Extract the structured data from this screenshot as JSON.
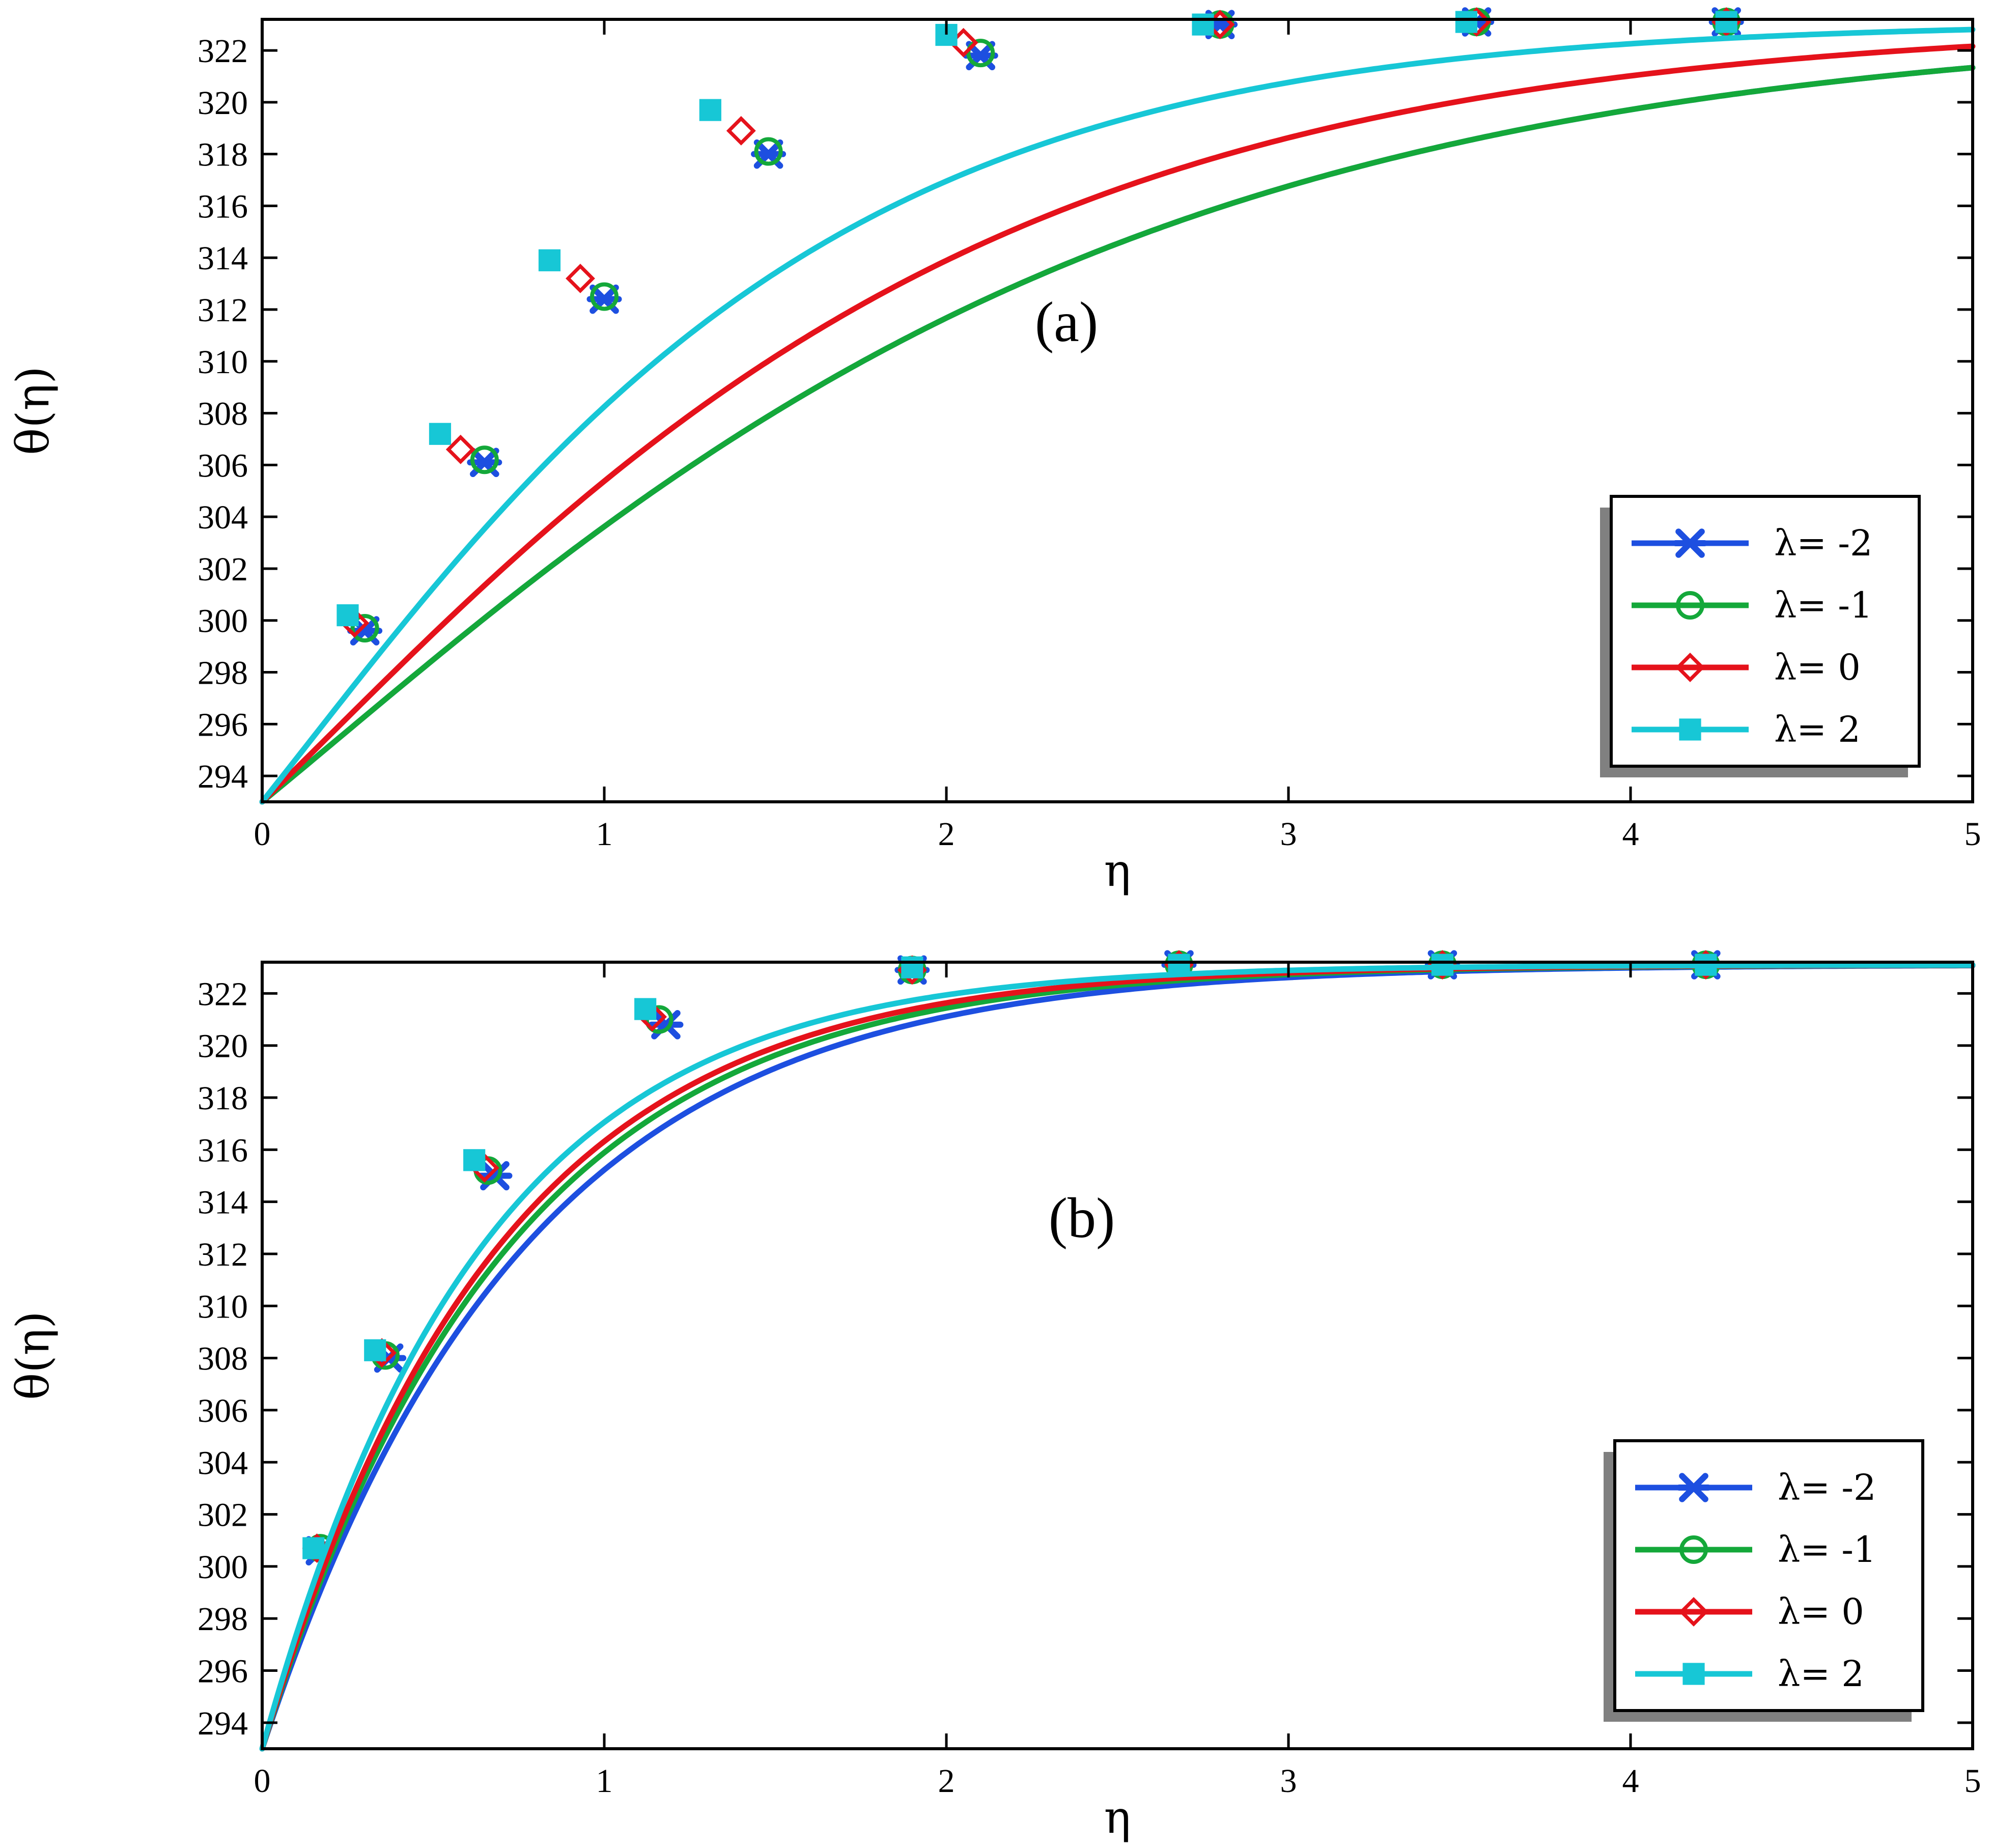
{
  "chart_data": [
    {
      "type": "line",
      "annotation": "(a)",
      "xlabel": "η",
      "ylabel": "θ(η)",
      "xlim": [
        0,
        5
      ],
      "ylim": [
        293,
        323.2
      ],
      "xticks": [
        "0",
        "1",
        "2",
        "3",
        "4",
        "5"
      ],
      "xtick_values": [
        0,
        1,
        2,
        3,
        4,
        5
      ],
      "yticks": [
        "294",
        "296",
        "298",
        "300",
        "302",
        "304",
        "306",
        "308",
        "310",
        "312",
        "314",
        "316",
        "318",
        "320",
        "322"
      ],
      "ytick_values": [
        294,
        296,
        298,
        300,
        302,
        304,
        306,
        308,
        310,
        312,
        314,
        316,
        318,
        320,
        322
      ],
      "legend_position": "lower-right",
      "series": [
        {
          "name": "λ= -2",
          "color": "#1d4fe0",
          "marker": "star",
          "k": 0.8,
          "marker_x": [
            0.3,
            0.65,
            1.0,
            1.48,
            2.1,
            2.8,
            3.55,
            4.28
          ],
          "marker_y": [
            299.6,
            306.1,
            312.4,
            318.0,
            321.8,
            323.0,
            323.1,
            323.1
          ]
        },
        {
          "name": "λ= -1",
          "color": "#14a83a",
          "marker": "circle",
          "k": 0.8,
          "marker_x": [
            0.3,
            0.65,
            1.0,
            1.48,
            2.1,
            2.8,
            3.55,
            4.28
          ],
          "marker_y": [
            299.7,
            306.2,
            312.5,
            318.1,
            321.9,
            323.0,
            323.1,
            323.1
          ]
        },
        {
          "name": "λ= 0",
          "color": "#e5121b",
          "marker": "diamond",
          "k": 0.95,
          "marker_x": [
            0.27,
            0.58,
            0.93,
            1.4,
            2.05,
            2.8,
            3.55,
            4.28
          ],
          "marker_y": [
            299.9,
            306.6,
            313.2,
            318.9,
            322.3,
            323.0,
            323.1,
            323.1
          ]
        },
        {
          "name": "λ= 2",
          "color": "#17c7d6",
          "marker": "square",
          "k": 1.22,
          "marker_x": [
            0.25,
            0.52,
            0.84,
            1.31,
            2.0,
            2.75,
            3.52,
            4.28
          ],
          "marker_y": [
            300.2,
            307.2,
            313.9,
            319.7,
            322.6,
            323.0,
            323.1,
            323.1
          ]
        }
      ]
    },
    {
      "type": "line",
      "annotation": "(b)",
      "xlabel": "η",
      "ylabel": "θ(η)",
      "xlim": [
        0,
        5
      ],
      "ylim": [
        293,
        323.2
      ],
      "xticks": [
        "0",
        "1",
        "2",
        "3",
        "4",
        "5"
      ],
      "xtick_values": [
        0,
        1,
        2,
        3,
        4,
        5
      ],
      "yticks": [
        "294",
        "296",
        "298",
        "300",
        "302",
        "304",
        "306",
        "308",
        "310",
        "312",
        "314",
        "316",
        "318",
        "320",
        "322"
      ],
      "ytick_values": [
        294,
        296,
        298,
        300,
        302,
        304,
        306,
        308,
        310,
        312,
        314,
        316,
        318,
        320,
        322
      ],
      "legend_position": "lower-right",
      "series": [
        {
          "name": "λ= -2",
          "color": "#1d4fe0",
          "marker": "star",
          "k": 1.55,
          "marker_x": [
            0.17,
            0.37,
            0.68,
            1.18,
            1.9,
            2.68,
            3.45,
            4.22
          ],
          "marker_y": [
            300.6,
            308.0,
            315.0,
            320.8,
            322.9,
            323.1,
            323.1,
            323.1
          ]
        },
        {
          "name": "λ= -1",
          "color": "#14a83a",
          "marker": "circle",
          "k": 1.65,
          "marker_x": [
            0.17,
            0.36,
            0.66,
            1.16,
            1.9,
            2.68,
            3.45,
            4.22
          ],
          "marker_y": [
            300.7,
            308.1,
            315.2,
            321.0,
            322.9,
            323.1,
            323.1,
            323.1
          ]
        },
        {
          "name": "λ= 0",
          "color": "#e5121b",
          "marker": "diamond",
          "k": 1.72,
          "marker_x": [
            0.16,
            0.35,
            0.65,
            1.14,
            1.9,
            2.68,
            3.45,
            4.22
          ],
          "marker_y": [
            300.7,
            308.2,
            315.3,
            321.1,
            322.9,
            323.1,
            323.1,
            323.1
          ]
        },
        {
          "name": "λ= 2",
          "color": "#17c7d6",
          "marker": "square",
          "k": 1.85,
          "marker_x": [
            0.15,
            0.33,
            0.62,
            1.12,
            1.9,
            2.68,
            3.45,
            4.22
          ],
          "marker_y": [
            300.7,
            308.3,
            315.6,
            321.4,
            323.0,
            323.1,
            323.1,
            323.1
          ]
        }
      ]
    }
  ]
}
